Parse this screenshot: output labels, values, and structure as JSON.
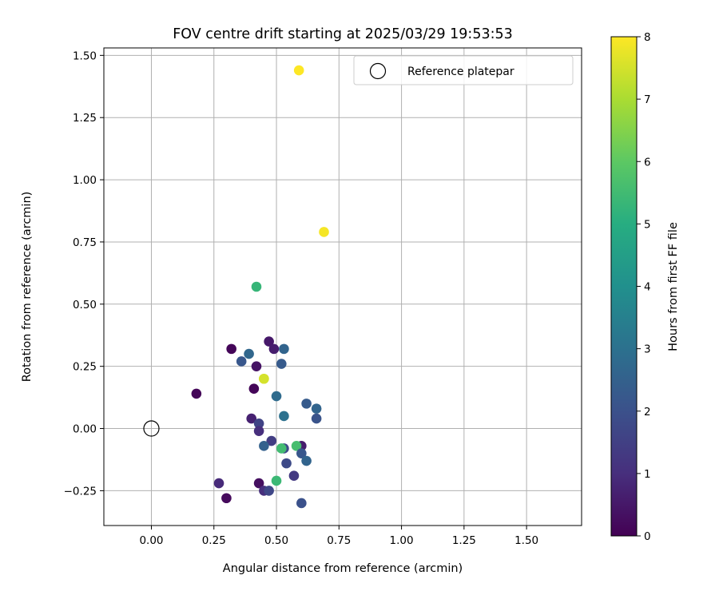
{
  "chart_data": {
    "type": "scatter",
    "title": "FOV centre drift starting at 2025/03/29 19:53:53",
    "xlabel": "Angular distance from reference (arcmin)",
    "ylabel": "Rotation from reference (arcmin)",
    "xlim": [
      -0.19,
      1.72
    ],
    "ylim": [
      -0.39,
      1.53
    ],
    "xticks": [
      "0.00",
      "0.25",
      "0.50",
      "0.75",
      "1.00",
      "1.25",
      "1.50"
    ],
    "xtick_values": [
      0,
      0.25,
      0.5,
      0.75,
      1.0,
      1.25,
      1.5
    ],
    "yticks": [
      "−0.25",
      "0.00",
      "0.25",
      "0.50",
      "0.75",
      "1.00",
      "1.25",
      "1.50"
    ],
    "ytick_values": [
      -0.25,
      0,
      0.25,
      0.5,
      0.75,
      1.0,
      1.25,
      1.5
    ],
    "grid": true,
    "legend": {
      "position": "top-right",
      "entries": [
        {
          "label": "Reference platepar",
          "marker": "open-circle"
        }
      ]
    },
    "reference_point": {
      "x": 0.0,
      "y": 0.0,
      "label": "Reference platepar"
    },
    "colorbar": {
      "label": "Hours from first FF file",
      "range": [
        0,
        8
      ],
      "ticks": [
        "0",
        "1",
        "2",
        "3",
        "4",
        "5",
        "6",
        "7",
        "8"
      ],
      "tick_values": [
        0,
        1,
        2,
        3,
        4,
        5,
        6,
        7,
        8
      ],
      "colormap": "viridis"
    },
    "points": [
      {
        "x": 0.59,
        "y": 1.44,
        "hours": 8.0
      },
      {
        "x": 0.69,
        "y": 0.79,
        "hours": 7.9
      },
      {
        "x": 0.42,
        "y": 0.57,
        "hours": 5.3
      },
      {
        "x": 0.45,
        "y": 0.2,
        "hours": 7.8
      },
      {
        "x": 0.45,
        "y": 0.2,
        "hours": 7.5
      },
      {
        "x": 0.32,
        "y": 0.32,
        "hours": 0.1
      },
      {
        "x": 0.47,
        "y": 0.35,
        "hours": 0.5
      },
      {
        "x": 0.49,
        "y": 0.32,
        "hours": 0.6
      },
      {
        "x": 0.53,
        "y": 0.32,
        "hours": 2.6
      },
      {
        "x": 0.39,
        "y": 0.3,
        "hours": 2.7
      },
      {
        "x": 0.36,
        "y": 0.27,
        "hours": 2.2
      },
      {
        "x": 0.42,
        "y": 0.25,
        "hours": 0.4
      },
      {
        "x": 0.52,
        "y": 0.26,
        "hours": 2.3
      },
      {
        "x": 0.18,
        "y": 0.14,
        "hours": 0.1
      },
      {
        "x": 0.41,
        "y": 0.16,
        "hours": 0.1
      },
      {
        "x": 0.5,
        "y": 0.13,
        "hours": 2.8
      },
      {
        "x": 0.62,
        "y": 0.1,
        "hours": 2.3
      },
      {
        "x": 0.66,
        "y": 0.08,
        "hours": 2.6
      },
      {
        "x": 0.53,
        "y": 0.05,
        "hours": 3.0
      },
      {
        "x": 0.66,
        "y": 0.04,
        "hours": 2.1
      },
      {
        "x": 0.4,
        "y": 0.04,
        "hours": 0.7
      },
      {
        "x": 0.43,
        "y": 0.02,
        "hours": 1.6
      },
      {
        "x": 0.43,
        "y": -0.01,
        "hours": 1.0
      },
      {
        "x": 0.48,
        "y": -0.05,
        "hours": 1.4
      },
      {
        "x": 0.45,
        "y": -0.07,
        "hours": 2.5
      },
      {
        "x": 0.6,
        "y": -0.07,
        "hours": 0.6
      },
      {
        "x": 0.53,
        "y": -0.08,
        "hours": 1.8
      },
      {
        "x": 0.52,
        "y": -0.08,
        "hours": 5.5
      },
      {
        "x": 0.58,
        "y": -0.07,
        "hours": 5.6
      },
      {
        "x": 0.6,
        "y": -0.1,
        "hours": 2.2
      },
      {
        "x": 0.62,
        "y": -0.13,
        "hours": 2.6
      },
      {
        "x": 0.54,
        "y": -0.14,
        "hours": 1.8
      },
      {
        "x": 0.57,
        "y": -0.19,
        "hours": 1.3
      },
      {
        "x": 0.5,
        "y": -0.21,
        "hours": 5.4
      },
      {
        "x": 0.27,
        "y": -0.22,
        "hours": 0.9
      },
      {
        "x": 0.43,
        "y": -0.22,
        "hours": 0.3
      },
      {
        "x": 0.45,
        "y": -0.25,
        "hours": 1.0
      },
      {
        "x": 0.47,
        "y": -0.25,
        "hours": 1.7
      },
      {
        "x": 0.3,
        "y": -0.28,
        "hours": 0.2
      },
      {
        "x": 0.6,
        "y": -0.3,
        "hours": 2.0
      }
    ]
  }
}
